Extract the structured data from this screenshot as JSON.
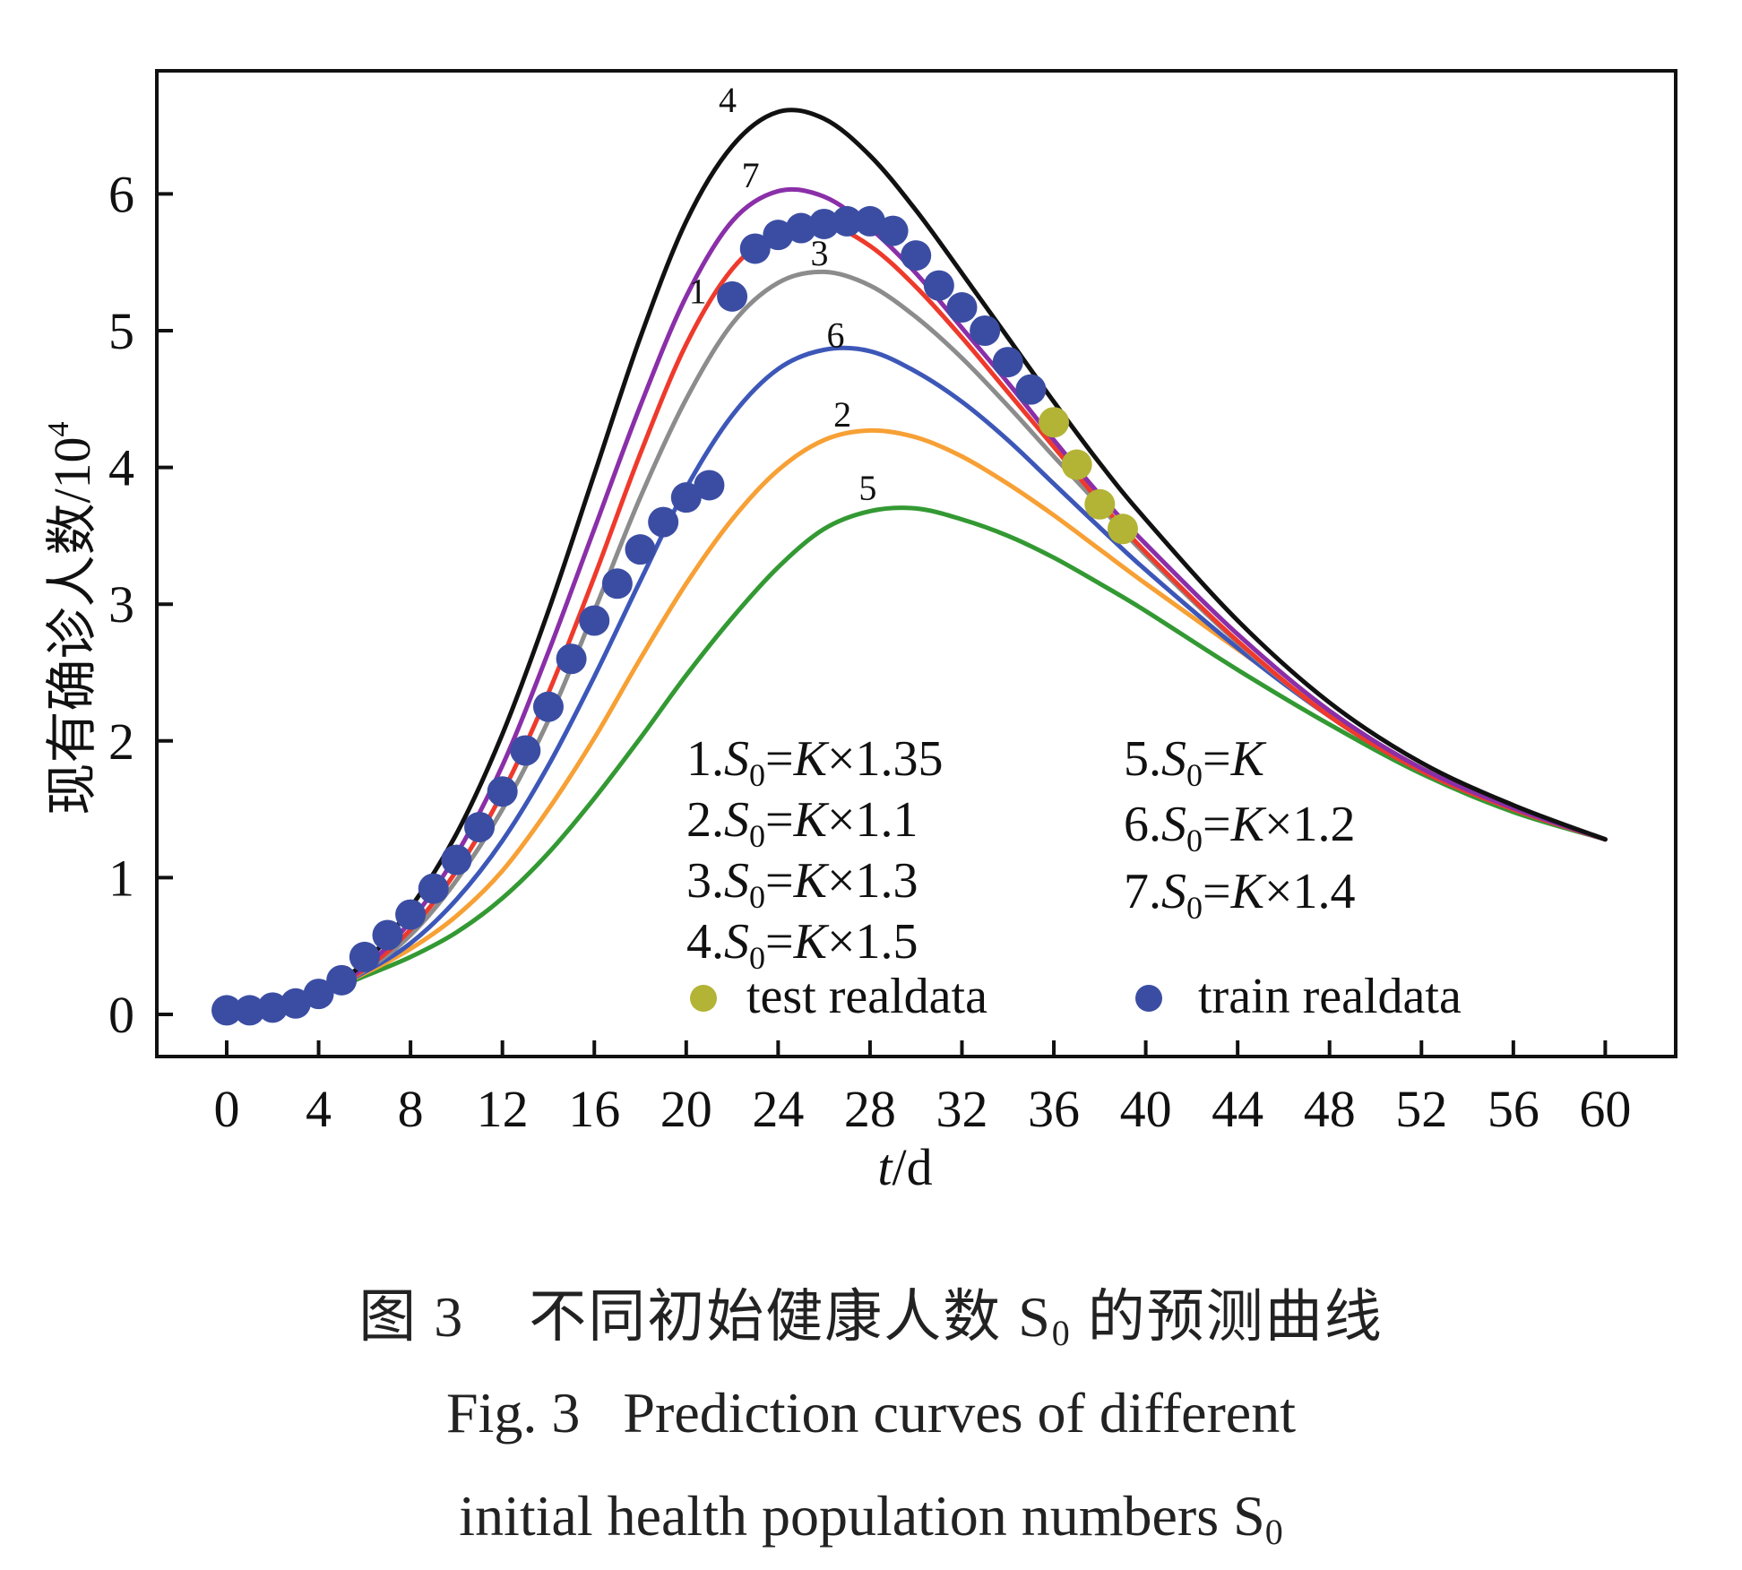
{
  "chart_data": {
    "type": "line",
    "title": "",
    "xlabel": "t/d",
    "ylabel": "现有确诊人数/10^4",
    "ylabel_base": "现有确诊人数/10",
    "ylabel_exp": "4",
    "xlim": [
      -1.5,
      64.5
    ],
    "ylim": [
      -0.3,
      6.85
    ],
    "xticks": [
      0,
      4,
      8,
      12,
      16,
      20,
      24,
      28,
      32,
      36,
      40,
      44,
      48,
      52,
      56,
      60
    ],
    "yticks": [
      0,
      1,
      2,
      3,
      4,
      5,
      6
    ],
    "grid": false,
    "legend_position": "bottom-right-inside",
    "series": [
      {
        "id": "1",
        "name": "1.S0=K×1.35",
        "color": "#ee3a2c",
        "label_pos": [
          20.5,
          5.2
        ],
        "x": [
          0,
          4,
          6,
          8,
          10,
          12,
          14,
          16,
          18,
          20,
          22,
          24,
          26,
          28,
          30,
          32,
          34,
          36,
          38,
          40,
          44,
          48,
          52,
          56,
          60
        ],
        "y": [
          0.03,
          0.17,
          0.33,
          0.62,
          1.05,
          1.62,
          2.35,
          3.2,
          4.1,
          4.9,
          5.45,
          5.72,
          5.78,
          5.62,
          5.32,
          4.95,
          4.55,
          4.15,
          3.75,
          3.38,
          2.73,
          2.18,
          1.78,
          1.5,
          1.28
        ]
      },
      {
        "id": "2",
        "name": "2.S0=K×1.1",
        "color": "#f7a035",
        "label_pos": [
          26.8,
          4.3
        ],
        "x": [
          0,
          4,
          6,
          8,
          10,
          12,
          14,
          16,
          18,
          20,
          22,
          24,
          26,
          28,
          30,
          32,
          34,
          36,
          38,
          40,
          44,
          48,
          52,
          56,
          60
        ],
        "y": [
          0.03,
          0.16,
          0.3,
          0.48,
          0.72,
          1.05,
          1.5,
          2.02,
          2.6,
          3.15,
          3.62,
          3.98,
          4.2,
          4.27,
          4.22,
          4.08,
          3.88,
          3.65,
          3.4,
          3.15,
          2.67,
          2.2,
          1.8,
          1.5,
          1.28
        ]
      },
      {
        "id": "3",
        "name": "3.S0=K×1.3",
        "color": "#8c8c8c",
        "label_pos": [
          25.8,
          5.48
        ],
        "x": [
          0,
          4,
          6,
          8,
          10,
          12,
          14,
          16,
          18,
          20,
          22,
          24,
          26,
          28,
          30,
          32,
          34,
          36,
          38,
          40,
          44,
          48,
          52,
          56,
          60
        ],
        "y": [
          0.03,
          0.17,
          0.32,
          0.58,
          0.98,
          1.5,
          2.15,
          2.95,
          3.78,
          4.5,
          5.05,
          5.35,
          5.43,
          5.33,
          5.1,
          4.8,
          4.45,
          4.08,
          3.72,
          3.36,
          2.72,
          2.18,
          1.78,
          1.5,
          1.28
        ]
      },
      {
        "id": "4",
        "name": "4.S0=K×1.5",
        "color": "#111111",
        "label_pos": [
          21.8,
          6.6
        ],
        "x": [
          0,
          4,
          6,
          8,
          10,
          12,
          14,
          16,
          18,
          20,
          22,
          24,
          26,
          28,
          30,
          32,
          34,
          36,
          38,
          40,
          44,
          48,
          52,
          56,
          60
        ],
        "y": [
          0.03,
          0.18,
          0.38,
          0.78,
          1.32,
          2.05,
          2.95,
          3.95,
          4.95,
          5.8,
          6.35,
          6.6,
          6.55,
          6.28,
          5.88,
          5.42,
          4.95,
          4.48,
          4.03,
          3.62,
          2.88,
          2.28,
          1.84,
          1.53,
          1.28
        ]
      },
      {
        "id": "5",
        "name": "5.S0=K",
        "color": "#339933",
        "label_pos": [
          27.9,
          3.76
        ],
        "x": [
          0,
          4,
          6,
          8,
          10,
          12,
          14,
          16,
          18,
          20,
          22,
          24,
          26,
          28,
          30,
          32,
          34,
          36,
          38,
          40,
          44,
          48,
          52,
          56,
          60
        ],
        "y": [
          0.03,
          0.15,
          0.28,
          0.42,
          0.6,
          0.85,
          1.18,
          1.58,
          2.02,
          2.48,
          2.9,
          3.27,
          3.55,
          3.68,
          3.7,
          3.62,
          3.5,
          3.34,
          3.15,
          2.95,
          2.52,
          2.12,
          1.76,
          1.48,
          1.28
        ]
      },
      {
        "id": "6",
        "name": "6.S0=K×1.2",
        "color": "#3d57b8",
        "label_pos": [
          26.5,
          4.88
        ],
        "x": [
          0,
          4,
          6,
          8,
          10,
          12,
          14,
          16,
          18,
          20,
          22,
          24,
          26,
          28,
          30,
          32,
          34,
          36,
          38,
          40,
          44,
          48,
          52,
          56,
          60
        ],
        "y": [
          0.03,
          0.16,
          0.31,
          0.52,
          0.84,
          1.27,
          1.82,
          2.47,
          3.17,
          3.85,
          4.38,
          4.72,
          4.86,
          4.85,
          4.7,
          4.48,
          4.2,
          3.88,
          3.56,
          3.25,
          2.68,
          2.18,
          1.78,
          1.5,
          1.28
        ]
      },
      {
        "id": "7",
        "name": "7.S0=K×1.4",
        "color": "#8a2fa8",
        "label_pos": [
          22.8,
          6.05
        ],
        "x": [
          0,
          4,
          6,
          8,
          10,
          12,
          14,
          16,
          18,
          20,
          22,
          24,
          26,
          28,
          30,
          32,
          34,
          36,
          38,
          40,
          44,
          48,
          52,
          56,
          60
        ],
        "y": [
          0.03,
          0.17,
          0.35,
          0.68,
          1.17,
          1.82,
          2.65,
          3.55,
          4.45,
          5.25,
          5.8,
          6.02,
          5.98,
          5.75,
          5.42,
          5.02,
          4.62,
          4.2,
          3.8,
          3.44,
          2.78,
          2.22,
          1.8,
          1.51,
          1.28
        ]
      }
    ],
    "scatter": [
      {
        "name": "train realdata",
        "color": "#3b4da3",
        "x": [
          0,
          1,
          2,
          3,
          4,
          5,
          6,
          7,
          8,
          9,
          10,
          11,
          12,
          13,
          14,
          15,
          16,
          17,
          18,
          19,
          20,
          21,
          22,
          23,
          24,
          25,
          26,
          27,
          28,
          29,
          30,
          31,
          32,
          33,
          34,
          35
        ],
        "y": [
          0.03,
          0.03,
          0.05,
          0.08,
          0.15,
          0.25,
          0.42,
          0.58,
          0.73,
          0.92,
          1.13,
          1.37,
          1.63,
          1.93,
          2.25,
          2.6,
          2.88,
          3.15,
          3.4,
          3.6,
          3.78,
          3.87,
          5.25,
          5.6,
          5.7,
          5.75,
          5.78,
          5.8,
          5.8,
          5.73,
          5.55,
          5.33,
          5.17,
          5.0,
          4.77,
          4.57
        ]
      },
      {
        "name": "test realdata",
        "color": "#b3b335",
        "x": [
          36,
          37,
          38,
          39
        ],
        "y": [
          4.33,
          4.02,
          3.73,
          3.55
        ]
      }
    ],
    "legend": {
      "col1": [
        {
          "num": "1.",
          "s": "S",
          "sub": "0",
          "eq": "=",
          "k": "K",
          "rest": "×1.35"
        },
        {
          "num": "2.",
          "s": "S",
          "sub": "0",
          "eq": "=",
          "k": "K",
          "rest": "×1.1"
        },
        {
          "num": "3.",
          "s": "S",
          "sub": "0",
          "eq": "=",
          "k": "K",
          "rest": "×1.3"
        },
        {
          "num": "4.",
          "s": "S",
          "sub": "0",
          "eq": "=",
          "k": "K",
          "rest": "×1.5"
        }
      ],
      "col2": [
        {
          "num": "5.",
          "s": "S",
          "sub": "0",
          "eq": "=",
          "k": "K",
          "rest": ""
        },
        {
          "num": "6.",
          "s": "S",
          "sub": "0",
          "eq": "=",
          "k": "K",
          "rest": "×1.2"
        },
        {
          "num": "7.",
          "s": "S",
          "sub": "0",
          "eq": "=",
          "k": "K",
          "rest": "×1.4"
        }
      ],
      "test_label": "test realdata",
      "train_label": "train realdata"
    }
  },
  "caption": {
    "cn_prefix": "图 3",
    "cn_text": "不同初始健康人数 S",
    "cn_sub": "0",
    "cn_suffix": " 的预测曲线",
    "en_line1": "Fig. 3   Prediction curves of different",
    "en_line2": "initial health population numbers S",
    "en_sub": "0"
  }
}
